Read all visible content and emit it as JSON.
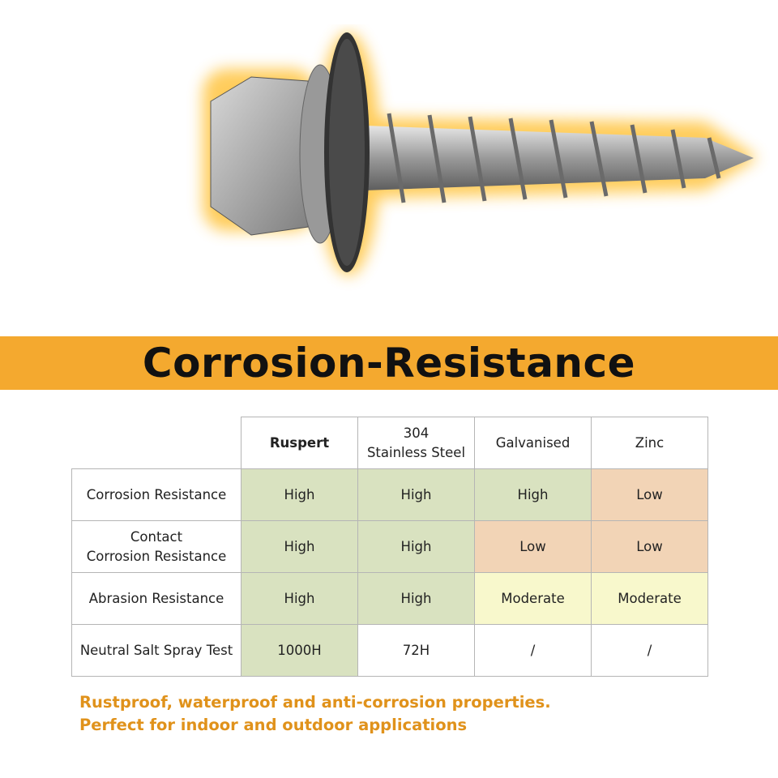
{
  "title": "Corrosion-Resistance",
  "colors": {
    "banner": "#f4a92f",
    "high": "#d9e2c0",
    "low": "#f2d4b6",
    "moderate": "#f8f8cc",
    "tagline": "#e0921b"
  },
  "product_image": "self-drilling-roofing-screw-with-washer",
  "table": {
    "headers": [
      "Ruspert",
      "304\nStainless Steel",
      "Galvanised",
      "Zinc"
    ],
    "rows": [
      {
        "label": "Corrosion Resistance",
        "values": [
          "High",
          "High",
          "High",
          "Low"
        ]
      },
      {
        "label": "Contact\nCorrosion Resistance",
        "values": [
          "High",
          "High",
          "Low",
          "Low"
        ]
      },
      {
        "label": "Abrasion Resistance",
        "values": [
          "High",
          "High",
          "Moderate",
          "Moderate"
        ]
      },
      {
        "label": "Neutral Salt Spray Test",
        "values": [
          "1000H",
          "72H",
          "/",
          "/"
        ]
      }
    ]
  },
  "tagline": [
    "Rustproof, waterproof and anti-corrosion properties.",
    "Perfect for indoor and outdoor applications"
  ]
}
